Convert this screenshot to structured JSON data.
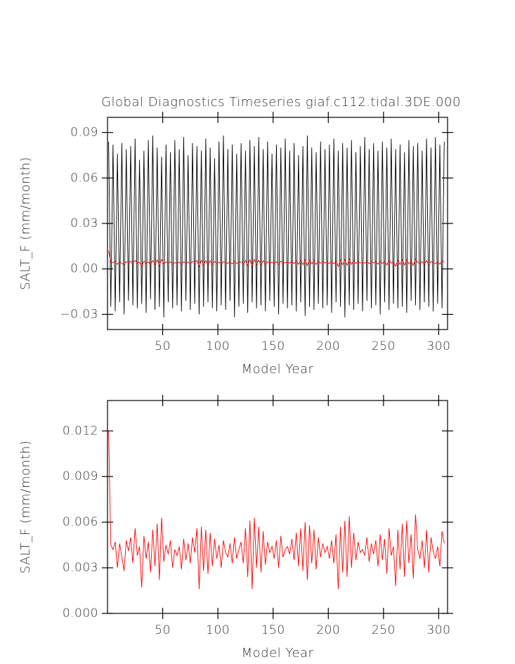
{
  "chart_data": [
    {
      "type": "line",
      "title": "Global Diagnostics Timeseries giaf.c112.tidal.3DE.000",
      "xlabel": "Model Year",
      "ylabel": "SALT_F (mm/month)",
      "x": [
        1,
        3,
        5,
        7,
        9,
        11,
        13,
        15,
        17,
        19,
        21,
        23,
        25,
        27,
        29,
        31,
        33,
        35,
        37,
        39,
        41,
        43,
        45,
        47,
        49,
        51,
        53,
        55,
        57,
        59,
        61,
        63,
        65,
        67,
        69,
        71,
        73,
        75,
        77,
        79,
        81,
        83,
        85,
        87,
        89,
        91,
        93,
        95,
        97,
        99,
        101,
        103,
        105,
        107,
        109,
        111,
        113,
        115,
        117,
        119,
        121,
        123,
        125,
        127,
        129,
        131,
        133,
        135,
        137,
        139,
        141,
        143,
        145,
        147,
        149,
        151,
        153,
        155,
        157,
        159,
        161,
        163,
        165,
        167,
        169,
        171,
        173,
        175,
        177,
        179,
        181,
        183,
        185,
        187,
        189,
        191,
        193,
        195,
        197,
        199,
        201,
        203,
        205,
        207,
        209,
        211,
        213,
        215,
        217,
        219,
        221,
        223,
        225,
        227,
        229,
        231,
        233,
        235,
        237,
        239,
        241,
        243,
        245,
        247,
        249,
        251,
        253,
        255,
        257,
        259,
        261,
        263,
        265,
        267,
        269,
        271,
        273,
        275,
        277,
        279,
        281,
        283,
        285,
        287,
        289,
        291,
        293,
        295,
        297,
        299,
        301,
        303,
        305
      ],
      "series": [
        {
          "color": "#000000",
          "values": [
            0.084,
            -0.025,
            0.082,
            -0.028,
            0.076,
            -0.022,
            0.083,
            -0.03,
            0.079,
            -0.021,
            0.081,
            -0.024,
            0.086,
            -0.026,
            0.072,
            -0.023,
            0.078,
            -0.029,
            0.085,
            -0.02,
            0.088,
            -0.027,
            0.08,
            -0.025,
            0.074,
            -0.032,
            0.082,
            -0.022,
            0.077,
            -0.026,
            0.085,
            -0.024,
            0.079,
            -0.028,
            0.087,
            -0.021,
            0.075,
            -0.027,
            0.083,
            -0.023,
            0.081,
            -0.03,
            0.078,
            -0.025,
            0.086,
            -0.022,
            0.08,
            -0.026,
            0.073,
            -0.028,
            0.084,
            -0.024,
            0.088,
            -0.027,
            0.079,
            -0.021,
            0.082,
            -0.032,
            0.076,
            -0.025,
            0.083,
            -0.023,
            0.078,
            -0.029,
            0.085,
            -0.022,
            0.081,
            -0.026,
            0.087,
            -0.024,
            0.079,
            -0.028,
            0.084,
            -0.021,
            0.076,
            -0.025,
            0.082,
            -0.03,
            0.08,
            -0.023,
            0.086,
            -0.026,
            0.078,
            -0.024,
            0.083,
            -0.028,
            0.075,
            -0.022,
            0.081,
            -0.031,
            0.088,
            -0.025,
            0.08,
            -0.027,
            0.077,
            -0.023,
            0.084,
            -0.026,
            0.079,
            -0.024,
            0.082,
            -0.029,
            0.086,
            -0.022,
            0.078,
            -0.025,
            0.083,
            -0.032,
            0.08,
            -0.024,
            0.085,
            -0.027,
            0.077,
            -0.023,
            0.081,
            -0.028,
            0.087,
            -0.021,
            0.079,
            -0.026,
            0.083,
            -0.024,
            0.078,
            -0.03,
            0.084,
            -0.022,
            0.08,
            -0.027,
            0.086,
            -0.023,
            0.079,
            -0.026,
            0.082,
            -0.025,
            0.077,
            -0.029,
            0.085,
            -0.021,
            0.081,
            -0.024,
            0.083,
            -0.027,
            0.078,
            -0.022,
            0.086,
            -0.025,
            0.08,
            -0.028,
            0.087,
            -0.023,
            0.082,
            -0.026,
            0.084
          ]
        },
        {
          "color": "#ff0000",
          "values": [
            0.012,
            0.0045,
            0.0042,
            0.0047,
            0.003,
            0.0046,
            0.0037,
            0.0028,
            0.0048,
            0.0041,
            0.005,
            0.0033,
            0.0056,
            0.0038,
            0.0044,
            0.0017,
            0.0051,
            0.0036,
            0.0047,
            0.0027,
            0.0055,
            0.0031,
            0.0059,
            0.0022,
            0.0063,
            0.0034,
            0.0045,
            0.0039,
            0.0048,
            0.003,
            0.0042,
            0.0038,
            0.0044,
            0.0029,
            0.0049,
            0.0035,
            0.0046,
            0.0033,
            0.005,
            0.004,
            0.0056,
            0.0016,
            0.0057,
            0.0028,
            0.0055,
            0.0026,
            0.0053,
            0.0031,
            0.0049,
            0.0036,
            0.0045,
            0.003,
            0.0048,
            0.004,
            0.0037,
            0.0046,
            0.0033,
            0.005,
            0.0036,
            0.0042,
            0.0047,
            0.0033,
            0.0056,
            0.0024,
            0.0061,
            0.0016,
            0.0063,
            0.003,
            0.0057,
            0.0027,
            0.0054,
            0.0032,
            0.0047,
            0.004,
            0.0044,
            0.0036,
            0.0048,
            0.003,
            0.0051,
            0.0037,
            0.0042,
            0.0044,
            0.0039,
            0.0049,
            0.0035,
            0.0053,
            0.0031,
            0.0056,
            0.0028,
            0.006,
            0.0022,
            0.0058,
            0.0033,
            0.0055,
            0.0029,
            0.005,
            0.0037,
            0.0046,
            0.004,
            0.0044,
            0.0036,
            0.0048,
            0.0033,
            0.0052,
            0.0016,
            0.0057,
            0.0027,
            0.0061,
            0.0024,
            0.0064,
            0.003,
            0.0053,
            0.0035,
            0.0047,
            0.004,
            0.0042,
            0.0038,
            0.005,
            0.0034,
            0.0046,
            0.0039,
            0.0048,
            0.0031,
            0.0052,
            0.0035,
            0.0049,
            0.0026,
            0.0056,
            0.0038,
            0.0044,
            0.0018,
            0.0055,
            0.0029,
            0.0059,
            0.0024,
            0.0061,
            0.0033,
            0.0052,
            0.0023,
            0.0065,
            0.0042,
            0.0036,
            0.0048,
            0.003,
            0.0055,
            0.0027,
            0.005,
            0.0041,
            0.0036,
            0.0044,
            0.0031,
            0.0054,
            0.0046
          ]
        }
      ],
      "xlim": [
        0,
        308
      ],
      "xticks": [
        50,
        100,
        150,
        200,
        250,
        300
      ],
      "ylim": [
        -0.04,
        0.1
      ],
      "yticks": [
        {
          "value": -0.03,
          "label": "−0.03"
        },
        {
          "value": 0,
          "label": "0.00"
        },
        0.03,
        0.06,
        0.09
      ]
    },
    {
      "type": "line",
      "xlabel": "Model Year",
      "ylabel": "SALT_F (mm/month)",
      "x": [
        1,
        3,
        5,
        7,
        9,
        11,
        13,
        15,
        17,
        19,
        21,
        23,
        25,
        27,
        29,
        31,
        33,
        35,
        37,
        39,
        41,
        43,
        45,
        47,
        49,
        51,
        53,
        55,
        57,
        59,
        61,
        63,
        65,
        67,
        69,
        71,
        73,
        75,
        77,
        79,
        81,
        83,
        85,
        87,
        89,
        91,
        93,
        95,
        97,
        99,
        101,
        103,
        105,
        107,
        109,
        111,
        113,
        115,
        117,
        119,
        121,
        123,
        125,
        127,
        129,
        131,
        133,
        135,
        137,
        139,
        141,
        143,
        145,
        147,
        149,
        151,
        153,
        155,
        157,
        159,
        161,
        163,
        165,
        167,
        169,
        171,
        173,
        175,
        177,
        179,
        181,
        183,
        185,
        187,
        189,
        191,
        193,
        195,
        197,
        199,
        201,
        203,
        205,
        207,
        209,
        211,
        213,
        215,
        217,
        219,
        221,
        223,
        225,
        227,
        229,
        231,
        233,
        235,
        237,
        239,
        241,
        243,
        245,
        247,
        249,
        251,
        253,
        255,
        257,
        259,
        261,
        263,
        265,
        267,
        269,
        271,
        273,
        275,
        277,
        279,
        281,
        283,
        285,
        287,
        289,
        291,
        293,
        295,
        297,
        299,
        301,
        303,
        305
      ],
      "series": [
        {
          "color": "#ff0000",
          "values": [
            0.012,
            0.0045,
            0.0042,
            0.0047,
            0.003,
            0.0046,
            0.0037,
            0.0028,
            0.0048,
            0.0041,
            0.005,
            0.0033,
            0.0056,
            0.0038,
            0.0044,
            0.0017,
            0.0051,
            0.0036,
            0.0047,
            0.0027,
            0.0055,
            0.0031,
            0.0059,
            0.0022,
            0.0063,
            0.0034,
            0.0045,
            0.0039,
            0.0048,
            0.003,
            0.0042,
            0.0038,
            0.0044,
            0.0029,
            0.0049,
            0.0035,
            0.0046,
            0.0033,
            0.005,
            0.004,
            0.0056,
            0.0016,
            0.0057,
            0.0028,
            0.0055,
            0.0026,
            0.0053,
            0.0031,
            0.0049,
            0.0036,
            0.0045,
            0.003,
            0.0048,
            0.004,
            0.0037,
            0.0046,
            0.0033,
            0.005,
            0.0036,
            0.0042,
            0.0047,
            0.0033,
            0.0056,
            0.0024,
            0.0061,
            0.0016,
            0.0063,
            0.003,
            0.0057,
            0.0027,
            0.0054,
            0.0032,
            0.0047,
            0.004,
            0.0044,
            0.0036,
            0.0048,
            0.003,
            0.0051,
            0.0037,
            0.0042,
            0.0044,
            0.0039,
            0.0049,
            0.0035,
            0.0053,
            0.0031,
            0.0056,
            0.0028,
            0.006,
            0.0022,
            0.0058,
            0.0033,
            0.0055,
            0.0029,
            0.005,
            0.0037,
            0.0046,
            0.004,
            0.0044,
            0.0036,
            0.0048,
            0.0033,
            0.0052,
            0.0016,
            0.0057,
            0.0027,
            0.0061,
            0.0024,
            0.0064,
            0.003,
            0.0053,
            0.0035,
            0.0047,
            0.004,
            0.0042,
            0.0038,
            0.005,
            0.0034,
            0.0046,
            0.0039,
            0.0048,
            0.0031,
            0.0052,
            0.0035,
            0.0049,
            0.0026,
            0.0056,
            0.0038,
            0.0044,
            0.0018,
            0.0055,
            0.0029,
            0.0059,
            0.0024,
            0.0061,
            0.0033,
            0.0052,
            0.0023,
            0.0065,
            0.0042,
            0.0036,
            0.0048,
            0.003,
            0.0055,
            0.0027,
            0.005,
            0.0041,
            0.0036,
            0.0044,
            0.0031,
            0.0054,
            0.0046
          ]
        }
      ],
      "xlim": [
        0,
        308
      ],
      "xticks": [
        50,
        100,
        150,
        200,
        250,
        300
      ],
      "ylim": [
        0,
        0.014
      ],
      "yticks": [
        {
          "value": 0,
          "label": "0.000"
        },
        0.003,
        0.006,
        0.009,
        0.012
      ]
    }
  ]
}
